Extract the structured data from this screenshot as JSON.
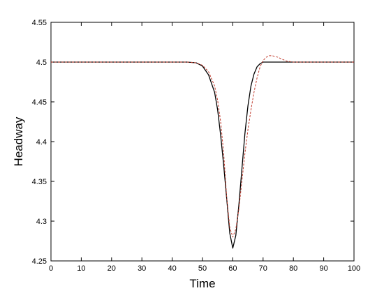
{
  "chart_data": {
    "type": "line",
    "title": "",
    "xlabel": "Time",
    "ylabel": "Headway",
    "xlim": [
      0,
      100
    ],
    "ylim": [
      4.25,
      4.55
    ],
    "xticks": [
      0,
      10,
      20,
      30,
      40,
      50,
      60,
      70,
      80,
      90,
      100
    ],
    "yticks": [
      4.25,
      4.3,
      4.35,
      4.4,
      4.45,
      4.5,
      4.55
    ],
    "ytick_labels": [
      "4.25",
      "4.3",
      "4.35",
      "4.4",
      "4.45",
      "4.5",
      "4.55"
    ],
    "grid": false,
    "legend": "none",
    "series": [
      {
        "color": "#000000",
        "style": "solid",
        "x": [
          0,
          45,
          48,
          50,
          52,
          54,
          55,
          56,
          57,
          58,
          59,
          60,
          61,
          62,
          63,
          64,
          65,
          66,
          67,
          68,
          69,
          70,
          71,
          72,
          75,
          80,
          90,
          100
        ],
        "y": [
          4.5,
          4.5,
          4.499,
          4.495,
          4.484,
          4.462,
          4.44,
          4.408,
          4.37,
          4.328,
          4.285,
          4.266,
          4.282,
          4.32,
          4.365,
          4.41,
          4.445,
          4.47,
          4.485,
          4.494,
          4.498,
          4.5,
          4.5,
          4.5,
          4.5,
          4.5,
          4.5,
          4.5
        ]
      },
      {
        "color": "#c0392b",
        "style": "dashed",
        "x": [
          0,
          45,
          48,
          50,
          52,
          54,
          55,
          56,
          57,
          58,
          59,
          60,
          61,
          62,
          63,
          64,
          65,
          66,
          67,
          68,
          69,
          70,
          71,
          72,
          73,
          74,
          75,
          76,
          78,
          80,
          85,
          90,
          100
        ],
        "y": [
          4.5,
          4.5,
          4.499,
          4.496,
          4.488,
          4.47,
          4.452,
          4.425,
          4.385,
          4.33,
          4.292,
          4.28,
          4.29,
          4.315,
          4.35,
          4.385,
          4.415,
          4.44,
          4.462,
          4.48,
          4.494,
          4.502,
          4.506,
          4.508,
          4.508,
          4.507,
          4.506,
          4.504,
          4.501,
          4.5,
          4.5,
          4.5,
          4.5
        ]
      }
    ]
  }
}
